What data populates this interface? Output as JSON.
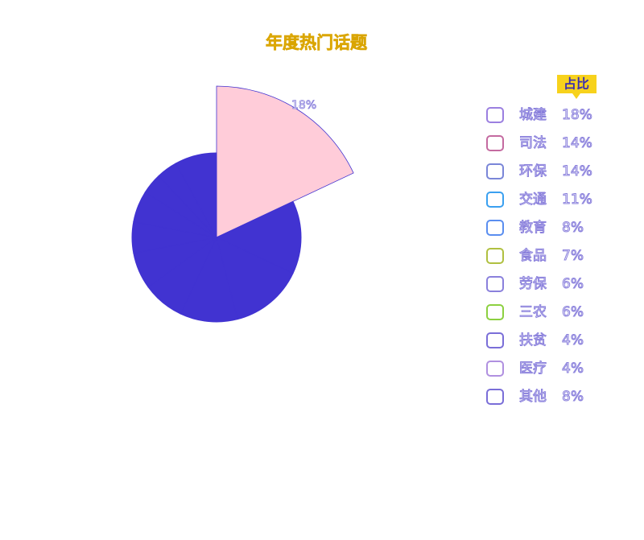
{
  "chart_data": {
    "type": "pie",
    "title": "年度热门话题",
    "legend_title": "占比",
    "categories": [
      "城建",
      "司法",
      "环保",
      "交通",
      "教育",
      "食品",
      "劳保",
      "三农",
      "扶贫",
      "医疗",
      "其他"
    ],
    "values": [
      18,
      14,
      14,
      11,
      8,
      7,
      6,
      6,
      4,
      4,
      8
    ],
    "value_labels": [
      "18%",
      "14%",
      "14%",
      "11%",
      "8%",
      "7%",
      "6%",
      "6%",
      "4%",
      "4%",
      "8%"
    ],
    "color": "#4133d1",
    "highlight_color": "#ffccd9",
    "legend": "right"
  }
}
